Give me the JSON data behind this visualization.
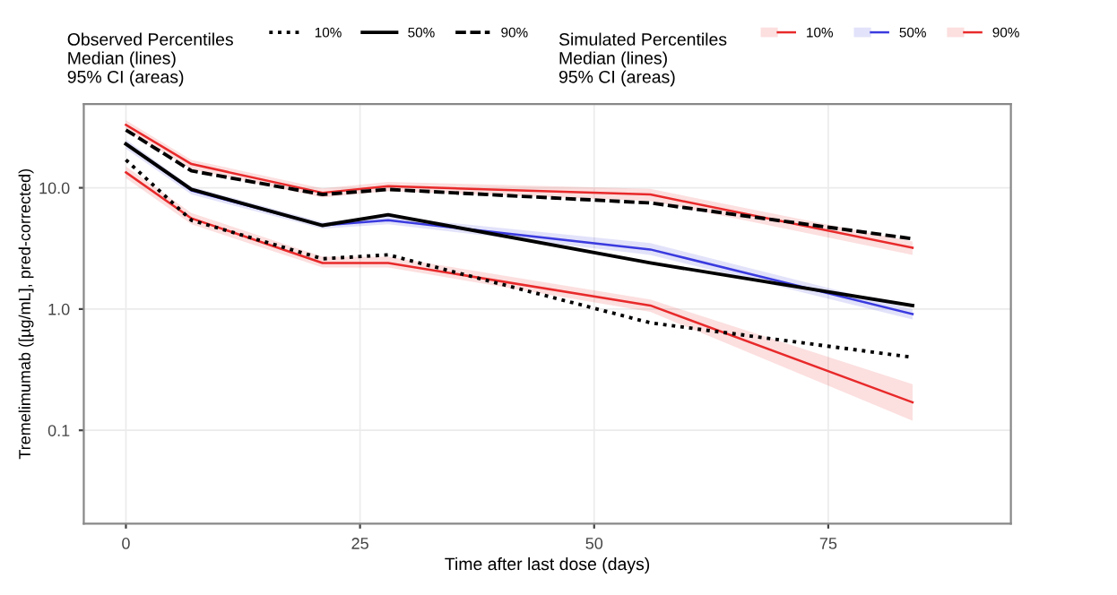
{
  "chart_data": {
    "type": "line",
    "xlabel": "Time after last dose (days)",
    "ylabel": "Tremelimumab ([µg/mL], pred-corrected)",
    "legend_title": [
      "Observed Percentiles\nMedian (lines)\n95% CI (areas)",
      "Simulated Percentiles\nMedian (lines)\n95% CI (areas)"
    ],
    "x": [
      0,
      7,
      21,
      28,
      56,
      84
    ],
    "series": [
      {
        "name": "10%",
        "color": "#000000",
        "line_style": "dotted",
        "values": [
          17,
          5.4,
          2.6,
          2.8,
          0.77,
          0.4
        ]
      },
      {
        "name": "50%",
        "color": "#000000",
        "line_style": "solid",
        "values": [
          23,
          9.7,
          4.9,
          6.0,
          2.4,
          1.07
        ]
      },
      {
        "name": "90%",
        "color": "#000000",
        "line_style": "dashed",
        "values": [
          30,
          13.8,
          8.8,
          9.7,
          7.5,
          3.8
        ]
      },
      {
        "name": "10%",
        "color": "#e8292a",
        "line_style": "solid",
        "values": [
          13.4,
          5.6,
          2.4,
          2.4,
          1.07,
          0.17
        ],
        "lower": [
          12,
          5.0,
          2.2,
          2.2,
          0.95,
          0.12
        ],
        "upper": [
          15,
          6.2,
          2.7,
          2.7,
          1.2,
          0.24
        ]
      },
      {
        "name": "50%",
        "color": "#3a3adf",
        "line_style": "solid",
        "values": [
          23,
          9.5,
          4.9,
          5.4,
          3.1,
          0.91
        ],
        "lower": [
          21,
          8.8,
          4.6,
          5.0,
          2.8,
          0.82
        ],
        "upper": [
          25,
          10.2,
          5.2,
          5.8,
          3.5,
          1.0
        ]
      },
      {
        "name": "90%",
        "color": "#e8292a",
        "line_style": "solid",
        "values": [
          33,
          15.7,
          9.1,
          10.3,
          8.8,
          3.2
        ],
        "lower": [
          30,
          14.2,
          8.3,
          9.4,
          7.8,
          2.8
        ],
        "upper": [
          36,
          17,
          9.9,
          11.2,
          9.8,
          3.6
        ]
      }
    ],
    "log": "y",
    "xlim": [
      -4.5,
      94.5
    ],
    "xticks": [
      0,
      25,
      50,
      75
    ],
    "ylim": [
      0.017,
      49
    ],
    "yticks": [
      {
        "value": 0.1,
        "label": "0.1"
      },
      {
        "value": 1,
        "label": "1.0"
      },
      {
        "value": 10,
        "label": "10.0"
      }
    ],
    "grid": true,
    "legend": "top",
    "marker": "none"
  }
}
